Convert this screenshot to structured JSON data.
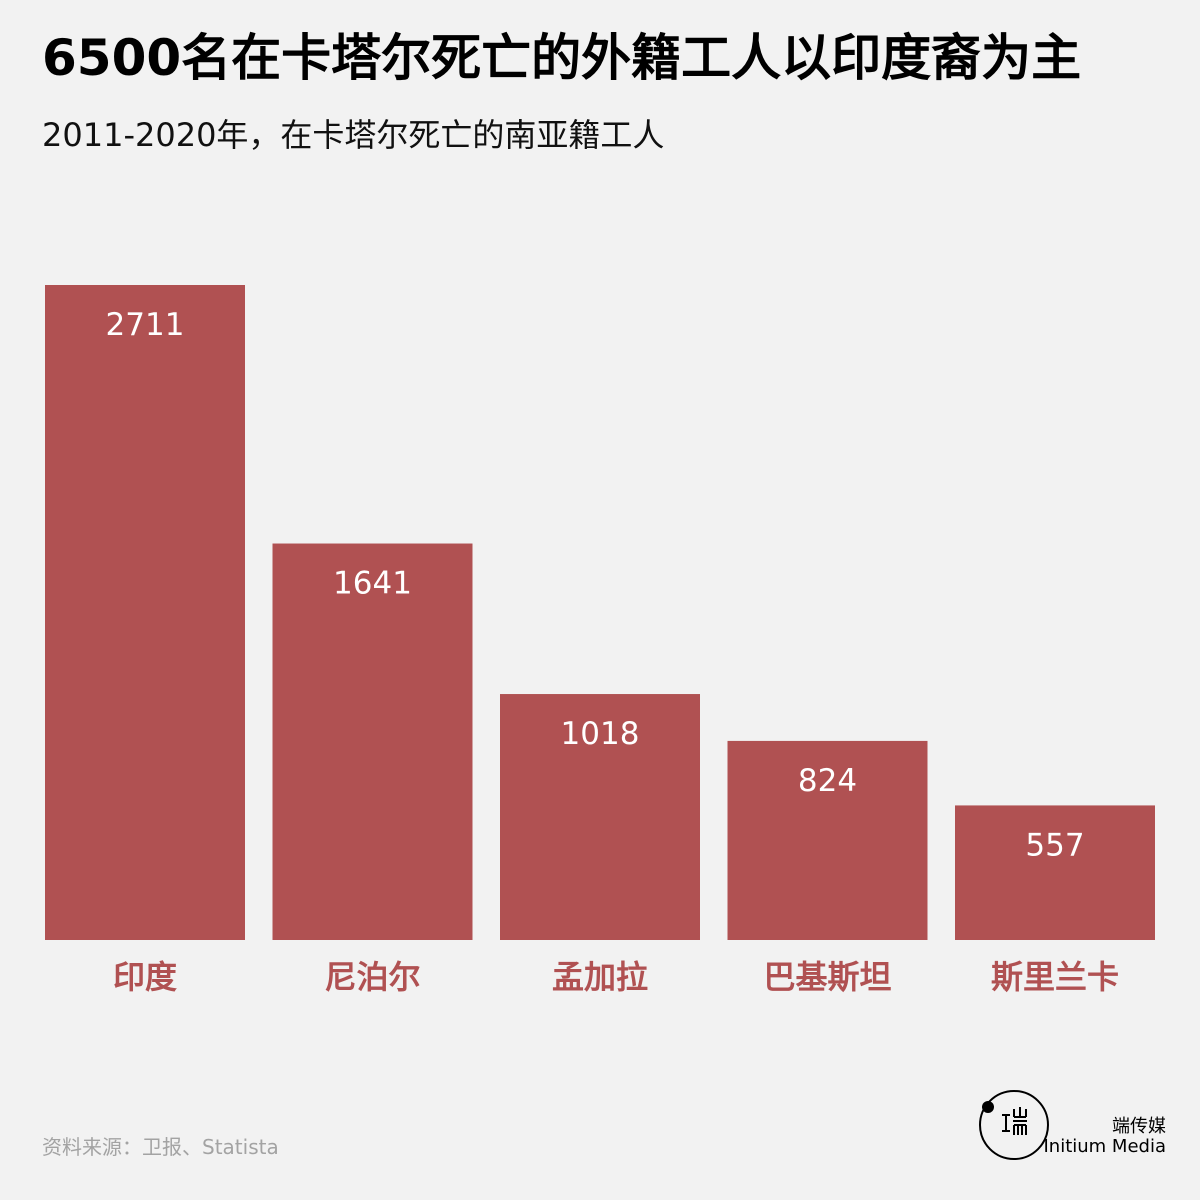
{
  "title": "6500名在卡塔尔死亡的外籍工人以印度裔为主",
  "subtitle": "2011-2020年，在卡塔尔死亡的南亚籍工人",
  "source": "资料来源：卫报、Statista",
  "brand": {
    "name_cn": "端传媒",
    "name_en": "Initium Media",
    "logo_glyph": "端"
  },
  "colors": {
    "bar": "#b05152",
    "category_label": "#b05152",
    "value_label": "#ffffff",
    "background": "#f2f2f2"
  },
  "chart_data": {
    "type": "bar",
    "categories": [
      "印度",
      "尼泊尔",
      "孟加拉",
      "巴基斯坦",
      "斯里兰卡"
    ],
    "values": [
      2711,
      1641,
      1018,
      824,
      557
    ],
    "title": "6500名在卡塔尔死亡的外籍工人以印度裔为主",
    "subtitle": "2011-2020年，在卡塔尔死亡的南亚籍工人",
    "xlabel": "",
    "ylabel": "",
    "ylim": [
      0,
      2711
    ],
    "grid": false,
    "legend": "none",
    "data_labels": "inside-top"
  }
}
